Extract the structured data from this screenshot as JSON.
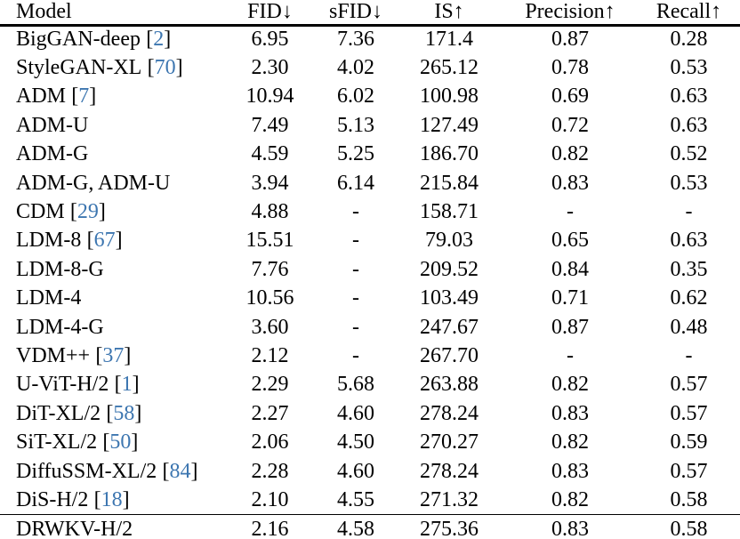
{
  "page": {
    "background": "#ffffff"
  },
  "colors": {
    "text": "#000000",
    "citation_link": "#3d76b0",
    "rule": "#000000"
  },
  "table": {
    "citation_brackets": [
      "[",
      "]"
    ],
    "columns": [
      {
        "label": "Model",
        "arrow": ""
      },
      {
        "label": "FID",
        "arrow": "↓"
      },
      {
        "label": "sFID",
        "arrow": "↓"
      },
      {
        "label": "IS",
        "arrow": "↑"
      },
      {
        "label": "Precision",
        "arrow": "↑"
      },
      {
        "label": "Recall",
        "arrow": "↑"
      }
    ],
    "rows": [
      {
        "model": "BigGAN-deep",
        "cite": "2",
        "fid": "6.95",
        "sfid": "7.36",
        "is": "171.4",
        "precision": "0.87",
        "recall": "0.28",
        "separator_above": false
      },
      {
        "model": "StyleGAN-XL",
        "cite": "70",
        "fid": "2.30",
        "sfid": "4.02",
        "is": "265.12",
        "precision": "0.78",
        "recall": "0.53",
        "separator_above": false
      },
      {
        "model": "ADM",
        "cite": "7",
        "fid": "10.94",
        "sfid": "6.02",
        "is": "100.98",
        "precision": "0.69",
        "recall": "0.63",
        "separator_above": false
      },
      {
        "model": "ADM-U",
        "cite": "",
        "fid": "7.49",
        "sfid": "5.13",
        "is": "127.49",
        "precision": "0.72",
        "recall": "0.63",
        "separator_above": false
      },
      {
        "model": "ADM-G",
        "cite": "",
        "fid": "4.59",
        "sfid": "5.25",
        "is": "186.70",
        "precision": "0.82",
        "recall": "0.52",
        "separator_above": false
      },
      {
        "model": "ADM-G, ADM-U",
        "cite": "",
        "fid": "3.94",
        "sfid": "6.14",
        "is": "215.84",
        "precision": "0.83",
        "recall": "0.53",
        "separator_above": false
      },
      {
        "model": "CDM",
        "cite": "29",
        "fid": "4.88",
        "sfid": "-",
        "is": "158.71",
        "precision": "-",
        "recall": "-",
        "separator_above": false
      },
      {
        "model": "LDM-8",
        "cite": "67",
        "fid": "15.51",
        "sfid": "-",
        "is": "79.03",
        "precision": "0.65",
        "recall": "0.63",
        "separator_above": false
      },
      {
        "model": "LDM-8-G",
        "cite": "",
        "fid": "7.76",
        "sfid": "-",
        "is": "209.52",
        "precision": "0.84",
        "recall": "0.35",
        "separator_above": false
      },
      {
        "model": "LDM-4",
        "cite": "",
        "fid": "10.56",
        "sfid": "-",
        "is": "103.49",
        "precision": "0.71",
        "recall": "0.62",
        "separator_above": false
      },
      {
        "model": "LDM-4-G",
        "cite": "",
        "fid": "3.60",
        "sfid": "-",
        "is": "247.67",
        "precision": "0.87",
        "recall": "0.48",
        "separator_above": false
      },
      {
        "model": "VDM++",
        "cite": "37",
        "fid": "2.12",
        "sfid": "-",
        "is": "267.70",
        "precision": "-",
        "recall": "-",
        "separator_above": false
      },
      {
        "model": "U-ViT-H/2",
        "cite": "1",
        "fid": "2.29",
        "sfid": "5.68",
        "is": "263.88",
        "precision": "0.82",
        "recall": "0.57",
        "separator_above": false
      },
      {
        "model": "DiT-XL/2",
        "cite": "58",
        "fid": "2.27",
        "sfid": "4.60",
        "is": "278.24",
        "precision": "0.83",
        "recall": "0.57",
        "separator_above": false
      },
      {
        "model": "SiT-XL/2",
        "cite": "50",
        "fid": "2.06",
        "sfid": "4.50",
        "is": "270.27",
        "precision": "0.82",
        "recall": "0.59",
        "separator_above": false
      },
      {
        "model": "DiffuSSM-XL/2",
        "cite": "84",
        "fid": "2.28",
        "sfid": "4.60",
        "is": "278.24",
        "precision": "0.83",
        "recall": "0.57",
        "separator_above": false
      },
      {
        "model": "DiS-H/2",
        "cite": "18",
        "fid": "2.10",
        "sfid": "4.55",
        "is": "271.32",
        "precision": "0.82",
        "recall": "0.58",
        "separator_above": false
      },
      {
        "model": "DRWKV-H/2",
        "cite": "",
        "fid": "2.16",
        "sfid": "4.58",
        "is": "275.36",
        "precision": "0.83",
        "recall": "0.58",
        "separator_above": true
      }
    ]
  }
}
